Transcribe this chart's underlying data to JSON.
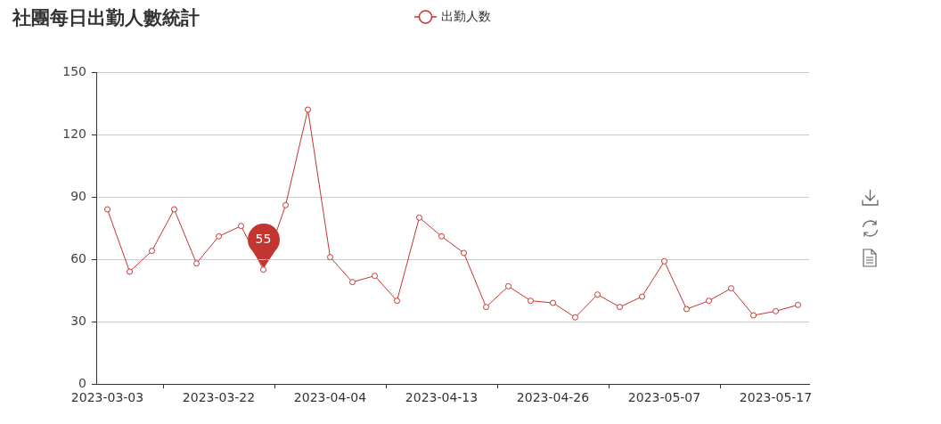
{
  "chart_data": {
    "type": "line",
    "title": "社團每日出勤人數統計",
    "categories": [
      "2023-03-03",
      null,
      null,
      null,
      null,
      "2023-03-22",
      null,
      null,
      null,
      null,
      "2023-04-04",
      null,
      null,
      null,
      null,
      "2023-04-13",
      null,
      null,
      null,
      null,
      "2023-04-26",
      null,
      null,
      null,
      null,
      "2023-05-07",
      null,
      null,
      null,
      null,
      "2023-05-17",
      null
    ],
    "series": [
      {
        "name": "出勤人数",
        "color": "#c23531",
        "values": [
          84,
          54,
          64,
          84,
          58,
          71,
          76,
          55,
          86,
          132,
          61,
          49,
          52,
          40,
          80,
          71,
          63,
          37,
          47,
          40,
          39,
          32,
          43,
          37,
          42,
          59,
          36,
          40,
          46,
          33,
          35,
          38
        ],
        "value_labels": [
          null,
          null,
          null,
          null,
          null,
          null,
          null,
          "55",
          null,
          null,
          null,
          null,
          null,
          null,
          null,
          null,
          null,
          null,
          null,
          null,
          null,
          null,
          null,
          null,
          null,
          null,
          null,
          null,
          null,
          null,
          null,
          null
        ]
      }
    ],
    "ylim": [
      0,
      150
    ],
    "yticks": [
      0,
      30,
      60,
      90,
      120,
      150
    ],
    "grid": "y",
    "legend": "top",
    "marker": "circle",
    "line_style": "solid"
  }
}
